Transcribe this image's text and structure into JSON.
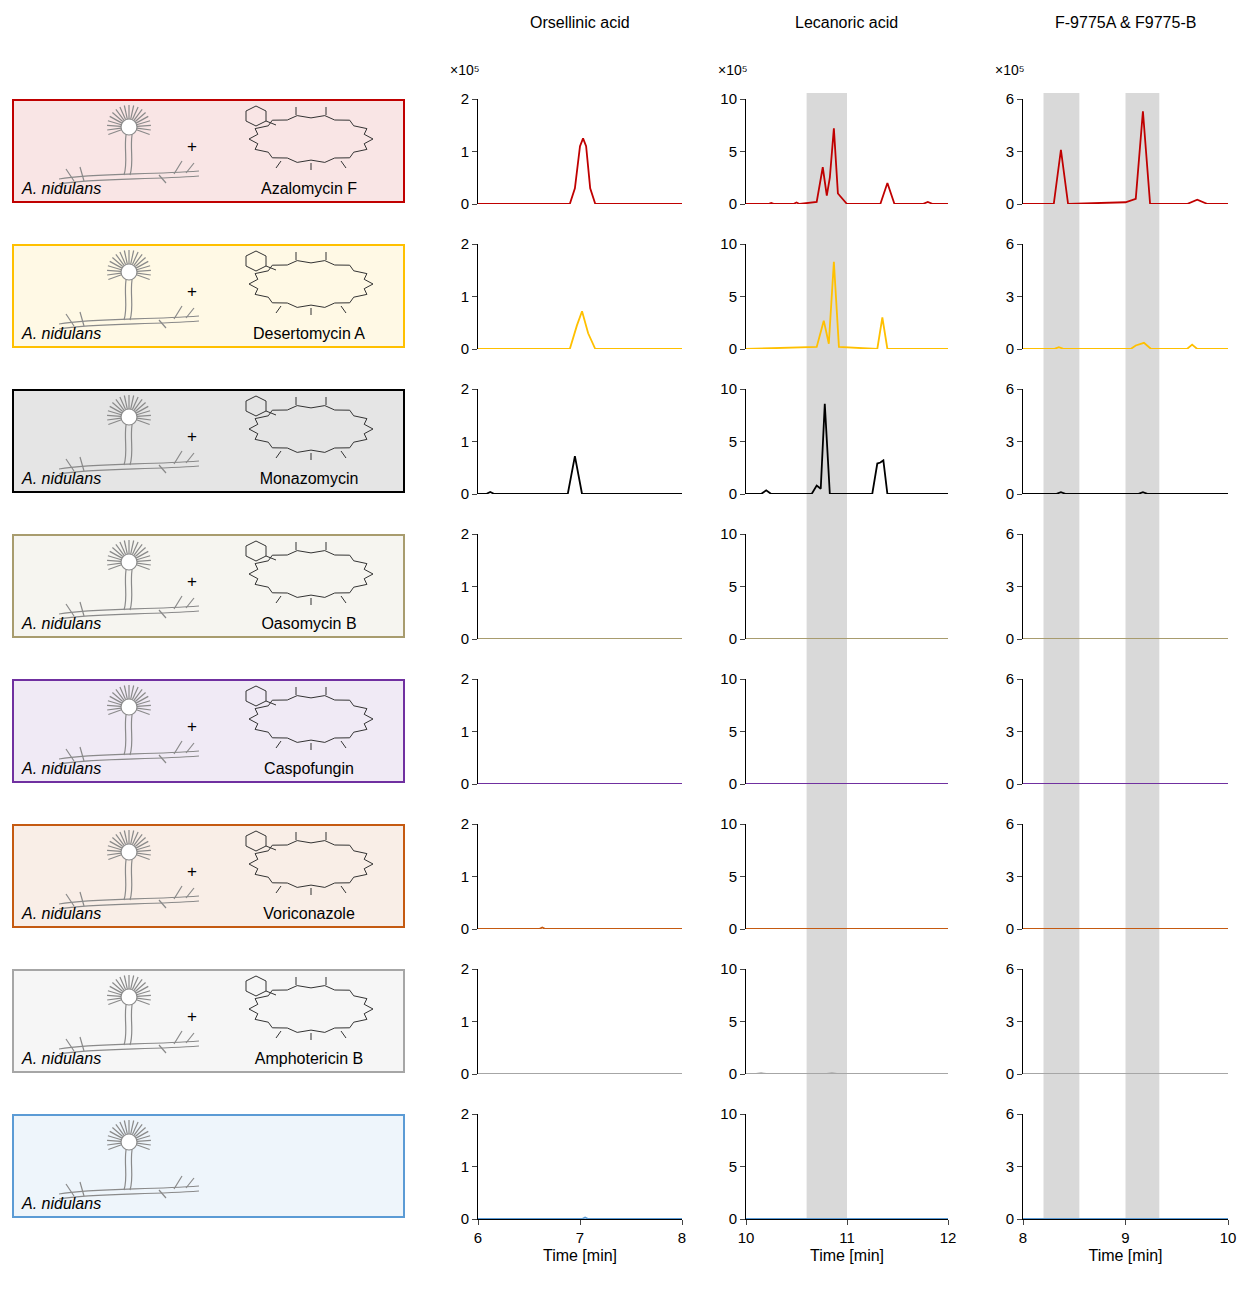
{
  "chart_data": {
    "type": "line",
    "x_label": "Time [min]",
    "y_scale_label": "×10⁵",
    "organism": "A. nidulans",
    "combine_symbol": "+",
    "columns": [
      {
        "title": "Orsellinic acid",
        "xlim": [
          6,
          8
        ],
        "xticks": [
          6,
          7,
          8
        ],
        "ylim": [
          0,
          2
        ],
        "yticks": [
          0,
          1,
          2
        ],
        "highlight": []
      },
      {
        "title": "Lecanoric acid",
        "xlim": [
          10,
          12
        ],
        "xticks": [
          10,
          11,
          12
        ],
        "ylim": [
          0,
          10
        ],
        "yticks": [
          0,
          5,
          10
        ],
        "highlight": [
          [
            10.6,
            11.0
          ]
        ]
      },
      {
        "title": "F-9775A & F9775-B",
        "xlim": [
          8,
          10
        ],
        "xticks": [
          8,
          9,
          10
        ],
        "ylim": [
          0,
          6
        ],
        "yticks": [
          0,
          3,
          6
        ],
        "highlight": [
          [
            8.2,
            8.55
          ],
          [
            9.0,
            9.33
          ]
        ]
      }
    ],
    "series": [
      {
        "name": "Azalomycin F",
        "color": "#c00000",
        "panels": [
          {
            "x": [
              6,
              6.9,
              6.95,
              7.0,
              7.03,
              7.06,
              7.1,
              7.15,
              8
            ],
            "values": [
              0,
              0,
              0.3,
              1.1,
              1.25,
              1.1,
              0.3,
              0,
              0
            ]
          },
          {
            "x": [
              10,
              10.22,
              10.25,
              10.28,
              10.47,
              10.5,
              10.53,
              10.7,
              10.76,
              10.8,
              10.83,
              10.87,
              10.91,
              11.0,
              11.33,
              11.4,
              11.47,
              11.75,
              11.8,
              11.85,
              12
            ],
            "values": [
              0,
              0,
              0.1,
              0,
              0,
              0.15,
              0,
              0.2,
              3.5,
              0.8,
              2.5,
              7.2,
              1.0,
              0,
              0,
              2.0,
              0,
              0,
              0.2,
              0,
              0
            ]
          },
          {
            "x": [
              8,
              8.3,
              8.37,
              8.44,
              9.0,
              9.1,
              9.17,
              9.24,
              9.6,
              9.7,
              9.8,
              10
            ],
            "values": [
              0,
              0,
              3.1,
              0,
              0.1,
              0.3,
              5.3,
              0,
              0,
              0.25,
              0,
              0
            ]
          }
        ]
      },
      {
        "name": "Desertomycin A",
        "color": "#ffc000",
        "panels": [
          {
            "x": [
              6,
              6.9,
              6.97,
              7.02,
              7.08,
              7.15,
              8
            ],
            "values": [
              0,
              0,
              0.45,
              0.72,
              0.3,
              0,
              0
            ]
          },
          {
            "x": [
              10,
              10.7,
              10.77,
              10.82,
              10.87,
              10.92,
              11.3,
              11.35,
              11.4,
              12
            ],
            "values": [
              0,
              0.2,
              2.7,
              0.5,
              8.3,
              0.2,
              0,
              3.0,
              0,
              0
            ]
          },
          {
            "x": [
              8,
              8.3,
              8.35,
              8.4,
              9.05,
              9.1,
              9.18,
              9.25,
              9.6,
              9.65,
              9.7,
              10
            ],
            "values": [
              0,
              0,
              0.1,
              0,
              0,
              0.2,
              0.35,
              0,
              0,
              0.25,
              0,
              0
            ]
          }
        ]
      },
      {
        "name": "Monazomycin",
        "color": "#000000",
        "panels": [
          {
            "x": [
              6,
              6.08,
              6.12,
              6.16,
              6.88,
              6.95,
              7.02,
              8
            ],
            "values": [
              0,
              0,
              0.04,
              0,
              0,
              0.72,
              0,
              0
            ]
          },
          {
            "x": [
              10,
              10.15,
              10.2,
              10.25,
              10.65,
              10.7,
              10.74,
              10.78,
              10.83,
              11.25,
              11.3,
              11.33,
              11.36,
              11.4,
              12
            ],
            "values": [
              0,
              0,
              0.35,
              0,
              0,
              0.8,
              0.5,
              8.6,
              0,
              0,
              2.9,
              3.0,
              3.2,
              0,
              0
            ]
          },
          {
            "x": [
              8,
              8.32,
              8.37,
              8.42,
              9.12,
              9.17,
              9.22,
              10
            ],
            "values": [
              0,
              0,
              0.1,
              0,
              0,
              0.1,
              0,
              0
            ]
          }
        ]
      },
      {
        "name": "Oasomycin B",
        "color": "#a89c6e",
        "panels": [
          {
            "x": [
              6,
              8
            ],
            "values": [
              0,
              0
            ]
          },
          {
            "x": [
              10,
              12
            ],
            "values": [
              0,
              0
            ]
          },
          {
            "x": [
              8,
              10
            ],
            "values": [
              0,
              0
            ]
          }
        ]
      },
      {
        "name": "Caspofungin",
        "color": "#7030a0",
        "panels": [
          {
            "x": [
              6,
              8
            ],
            "values": [
              0,
              0
            ]
          },
          {
            "x": [
              10,
              12
            ],
            "values": [
              0,
              0
            ]
          },
          {
            "x": [
              8,
              10
            ],
            "values": [
              0,
              0
            ]
          }
        ]
      },
      {
        "name": "Voriconazole",
        "color": "#c55a11",
        "panels": [
          {
            "x": [
              6,
              6.6,
              6.63,
              6.66,
              8
            ],
            "values": [
              0,
              0,
              0.03,
              0,
              0
            ]
          },
          {
            "x": [
              10,
              12
            ],
            "values": [
              0,
              0
            ]
          },
          {
            "x": [
              8,
              10
            ],
            "values": [
              0,
              0
            ]
          }
        ]
      },
      {
        "name": "Amphotericin B",
        "color": "#a6a6a6",
        "panels": [
          {
            "x": [
              6,
              8
            ],
            "values": [
              0,
              0
            ]
          },
          {
            "x": [
              10,
              10.1,
              10.15,
              10.2,
              10.8,
              10.85,
              10.9,
              12
            ],
            "values": [
              0,
              0,
              0.08,
              0,
              0,
              0.08,
              0,
              0
            ]
          },
          {
            "x": [
              8,
              10
            ],
            "values": [
              0,
              0
            ]
          }
        ]
      },
      {
        "name": null,
        "color": "#5b9bd5",
        "panels": [
          {
            "x": [
              6,
              7.02,
              7.05,
              7.08,
              8
            ],
            "values": [
              0,
              0,
              0.03,
              0,
              0
            ]
          },
          {
            "x": [
              10,
              12
            ],
            "values": [
              0,
              0
            ]
          },
          {
            "x": [
              8,
              10
            ],
            "values": [
              0,
              0
            ]
          }
        ]
      }
    ]
  }
}
